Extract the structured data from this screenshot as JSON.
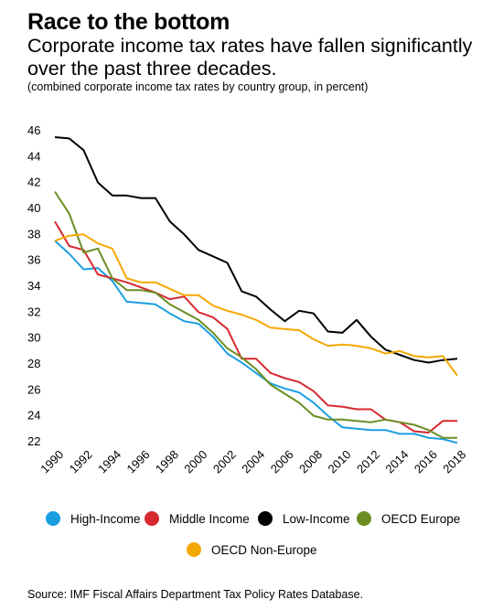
{
  "header": {
    "title": "Race to the bottom",
    "subtitle": "Corporate income tax rates have fallen significantly over the past three decades.",
    "note": "(combined corporate income tax rates by country group, in percent)"
  },
  "footer": {
    "source": "Source: IMF Fiscal Affairs Department Tax Policy Rates Database."
  },
  "chart_data": {
    "type": "line",
    "x": [
      1990,
      1991,
      1992,
      1993,
      1994,
      1995,
      1996,
      1997,
      1998,
      1999,
      2000,
      2001,
      2002,
      2003,
      2004,
      2005,
      2006,
      2007,
      2008,
      2009,
      2010,
      2011,
      2012,
      2013,
      2014,
      2015,
      2016,
      2017,
      2018
    ],
    "x_ticks": [
      "1990",
      "1992",
      "1994",
      "1996",
      "1998",
      "2000",
      "2002",
      "2004",
      "2006",
      "2008",
      "2010",
      "2012",
      "2014",
      "2016",
      "2018"
    ],
    "y_ticks": [
      "22",
      "24",
      "26",
      "28",
      "30",
      "32",
      "34",
      "36",
      "38",
      "40",
      "42",
      "44",
      "46"
    ],
    "ylim": [
      21.5,
      46.5
    ],
    "xlim": [
      1990,
      2018
    ],
    "grid": false,
    "legend_position": "bottom",
    "series": [
      {
        "name": "High-Income",
        "color": "#1a9ee0",
        "values": [
          38.0,
          37.0,
          35.8,
          35.9,
          34.9,
          33.3,
          33.2,
          33.1,
          32.4,
          31.8,
          31.6,
          30.6,
          29.3,
          28.6,
          27.8,
          27.0,
          26.6,
          26.3,
          25.5,
          24.5,
          23.6,
          23.5,
          23.4,
          23.4,
          23.1,
          23.1,
          22.8,
          22.7,
          22.4
        ]
      },
      {
        "name": "Middle Income",
        "color": "#d7282f",
        "values": [
          39.5,
          37.6,
          37.3,
          35.4,
          35.1,
          34.8,
          34.4,
          34.0,
          33.5,
          33.7,
          32.5,
          32.1,
          31.2,
          28.9,
          28.9,
          27.8,
          27.4,
          27.1,
          26.4,
          25.3,
          25.2,
          25.0,
          25.0,
          24.2,
          24.0,
          23.3,
          23.2,
          24.1,
          24.1
        ]
      },
      {
        "name": "Low-Income",
        "color": "#000000",
        "values": [
          46.0,
          45.9,
          45.0,
          42.5,
          41.5,
          41.5,
          41.3,
          41.3,
          39.5,
          38.5,
          37.3,
          36.8,
          36.3,
          34.1,
          33.7,
          32.7,
          31.8,
          32.6,
          32.4,
          31.0,
          30.9,
          31.9,
          30.6,
          29.6,
          29.2,
          28.8,
          28.6,
          28.8,
          28.9
        ]
      },
      {
        "name": "OECD Europe",
        "color": "#6b8e23",
        "values": [
          41.8,
          40.1,
          37.1,
          37.4,
          35.1,
          34.2,
          34.2,
          34.0,
          33.1,
          32.5,
          31.9,
          30.9,
          29.7,
          29.0,
          28.1,
          26.9,
          26.2,
          25.5,
          24.5,
          24.2,
          24.2,
          24.1,
          24.0,
          24.2,
          24.0,
          23.8,
          23.4,
          22.8,
          22.8
        ]
      },
      {
        "name": "OECD Non-Europe",
        "color": "#f5a800",
        "values": [
          38.0,
          38.4,
          38.5,
          37.8,
          37.4,
          35.1,
          34.8,
          34.8,
          34.3,
          33.8,
          33.8,
          33.0,
          32.6,
          32.3,
          31.9,
          31.3,
          31.2,
          31.1,
          30.4,
          29.9,
          30.0,
          29.9,
          29.7,
          29.3,
          29.5,
          29.1,
          29.0,
          29.1,
          27.6
        ]
      }
    ]
  }
}
